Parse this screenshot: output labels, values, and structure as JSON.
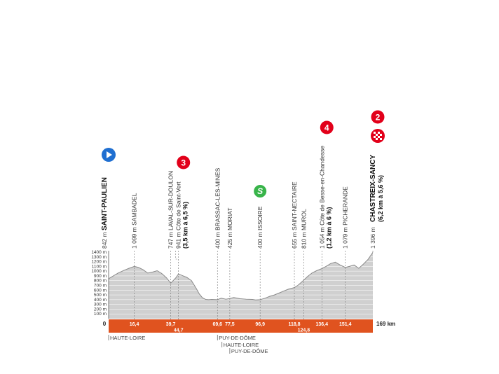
{
  "chart_data": {
    "type": "area",
    "title": "",
    "xlabel": "",
    "ylabel": "",
    "ylim": [
      0,
      1400
    ],
    "xlim": [
      0,
      169
    ],
    "y_ticks": [
      "1400 m",
      "1300 m",
      "1200 m",
      "1100 m",
      "1000 m",
      "900 m",
      "800 m",
      "700 m",
      "600 m",
      "500 m",
      "400 m",
      "300 m",
      "200 m",
      "100 m",
      "0 m"
    ],
    "y_tick_values": [
      1400,
      1300,
      1200,
      1100,
      1000,
      900,
      800,
      700,
      600,
      500,
      400,
      300,
      200,
      100,
      0
    ],
    "profile": {
      "x": [
        0,
        3,
        6,
        10,
        13,
        16.4,
        19,
        22,
        25,
        28,
        31,
        34,
        37,
        39.7,
        41,
        43,
        44.7,
        47,
        50,
        53,
        56,
        58,
        60,
        62,
        64,
        66,
        69.6,
        72,
        75,
        77.5,
        80,
        84,
        88,
        92,
        94,
        96.9,
        100,
        103,
        106,
        109,
        112,
        115,
        118.8,
        121,
        124.8,
        127,
        130,
        133,
        136.4,
        139,
        142,
        145,
        148,
        151.4,
        154,
        157,
        160,
        163,
        166,
        169
      ],
      "y": [
        842,
        900,
        960,
        1020,
        1060,
        1099,
        1080,
        1030,
        960,
        980,
        1010,
        950,
        860,
        747,
        790,
        860,
        941,
        910,
        870,
        800,
        640,
        520,
        440,
        405,
        400,
        405,
        400,
        430,
        410,
        425,
        445,
        420,
        410,
        405,
        395,
        400,
        430,
        470,
        500,
        540,
        580,
        620,
        655,
        700,
        810,
        880,
        960,
        1010,
        1054,
        1100,
        1160,
        1190,
        1130,
        1079,
        1100,
        1130,
        1060,
        1150,
        1250,
        1396
      ]
    },
    "start": {
      "name": "SAINT-PAULIEN",
      "altitude": "842 m"
    },
    "finish": {
      "name": "CHASTREIX-SANCY",
      "altitude": "1 396 m",
      "climb": "(6,2 km à 5,6 %)",
      "category": "2",
      "total_km": "169 km"
    },
    "points": [
      {
        "km": "16,4",
        "x": 16.4,
        "altitude": "1 099 m",
        "name": "SAMBADEL",
        "row": "top"
      },
      {
        "km": "39,7",
        "x": 39.7,
        "altitude": "747 m",
        "name": "LAVAL-SUR-DOULON",
        "row": "top"
      },
      {
        "km": "44,7",
        "x": 44.7,
        "altitude": "941 m",
        "name": "Côte de Saint-Vert",
        "row": "bottom",
        "climb": "(3,5 km à 6,5 %)",
        "category": "3"
      },
      {
        "km": "69,6",
        "x": 69.6,
        "altitude": "400 m",
        "name": "BRASSAC-LES-MINES",
        "row": "top"
      },
      {
        "km": "77,5",
        "x": 77.5,
        "altitude": "425 m",
        "name": "MORIAT",
        "row": "top"
      },
      {
        "km": "96,9",
        "x": 96.9,
        "altitude": "400 m",
        "name": "ISSOIRE",
        "row": "top",
        "sprint": "S"
      },
      {
        "km": "118,8",
        "x": 118.8,
        "altitude": "655 m",
        "name": "SAINT-NECTAIRE",
        "row": "top"
      },
      {
        "km": "124,8",
        "x": 124.8,
        "altitude": "810 m",
        "name": "MUROL",
        "row": "bottom"
      },
      {
        "km": "136,4",
        "x": 136.4,
        "altitude": "1 054 m",
        "name": "Côte de Besse-en-Chandesse",
        "row": "top",
        "climb": "(1,2 km à 6 %)",
        "category": "4"
      },
      {
        "km": "151,4",
        "x": 151.4,
        "altitude": "1 079 m",
        "name": "PICHERANDE",
        "row": "top"
      }
    ],
    "axis_zero": "0",
    "regions": [
      "HAUTE-LOIRE",
      "PUY-DE-DÔME",
      "HAUTE-LOIRE",
      "PUY-DE-DÔME"
    ],
    "colors": {
      "profile_fill": "#d0d0d0",
      "profile_line": "#8a8a8a",
      "km_band": "#e0531f",
      "climb_badge": "#e2001a",
      "sprint": "#38b44a",
      "start_badge": "#1f6fd1"
    }
  }
}
